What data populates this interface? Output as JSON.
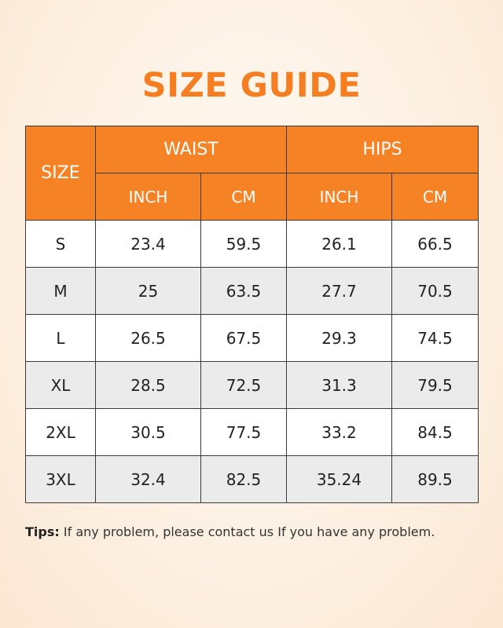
{
  "title": "SIZE GUIDE",
  "header": {
    "size": "SIZE",
    "waist": "WAIST",
    "hips": "HIPS",
    "inch": "INCH",
    "cm": "CM"
  },
  "rows": [
    {
      "size": "S",
      "waist_inch": "23.4",
      "waist_cm": "59.5",
      "hips_inch": "26.1",
      "hips_cm": "66.5"
    },
    {
      "size": "M",
      "waist_inch": "25",
      "waist_cm": "63.5",
      "hips_inch": "27.7",
      "hips_cm": "70.5"
    },
    {
      "size": "L",
      "waist_inch": "26.5",
      "waist_cm": "67.5",
      "hips_inch": "29.3",
      "hips_cm": "74.5"
    },
    {
      "size": "XL",
      "waist_inch": "28.5",
      "waist_cm": "72.5",
      "hips_inch": "31.3",
      "hips_cm": "79.5"
    },
    {
      "size": "2XL",
      "waist_inch": "30.5",
      "waist_cm": "77.5",
      "hips_inch": "33.2",
      "hips_cm": "84.5"
    },
    {
      "size": "3XL",
      "waist_inch": "32.4",
      "waist_cm": "82.5",
      "hips_inch": "35.24",
      "hips_cm": "89.5"
    }
  ],
  "tips": {
    "label": "Tips:",
    "text": "If any problem, please contact us If you have any problem."
  },
  "colors": {
    "accent": "#f58225",
    "title": "#f57d22",
    "row_alt": "#ebebeb"
  }
}
